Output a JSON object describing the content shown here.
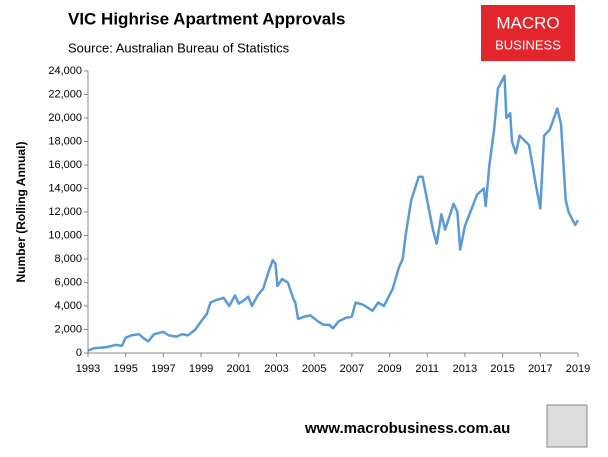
{
  "chart_data": {
    "type": "line",
    "title": "VIC Highrise Apartment Approvals",
    "subtitle": "Source: Australian Bureau of Statistics",
    "y_label": "Number (Rolling Annual)",
    "xlim": [
      1993,
      2019
    ],
    "xticks": [
      1993,
      1995,
      1997,
      1999,
      2001,
      2003,
      2005,
      2007,
      2009,
      2011,
      2013,
      2015,
      2017,
      2019
    ],
    "ylim": [
      0,
      24000
    ],
    "yticks": [
      0,
      {
        "value": 2000,
        "label": "2,000"
      },
      {
        "value": 4000,
        "label": "4,000"
      },
      {
        "value": 6000,
        "label": "6,000"
      },
      {
        "value": 8000,
        "label": "8,000"
      },
      {
        "value": 10000,
        "label": "10,000"
      },
      {
        "value": 12000,
        "label": "12,000"
      },
      {
        "value": 14000,
        "label": "14,000"
      },
      {
        "value": 16000,
        "label": "16,000"
      },
      {
        "value": 18000,
        "label": "18,000"
      },
      {
        "value": 20000,
        "label": "20,000"
      },
      {
        "value": 22000,
        "label": "22,000"
      },
      {
        "value": 24000,
        "label": "24,000"
      }
    ],
    "grid": false,
    "x": [
      1993.0,
      1993.3,
      1994.0,
      1994.5,
      1994.8,
      1995.0,
      1995.3,
      1995.7,
      1996.0,
      1996.2,
      1996.5,
      1997.0,
      1997.3,
      1997.7,
      1998.0,
      1998.3,
      1998.7,
      1999.0,
      1999.3,
      1999.5,
      1999.8,
      2000.2,
      2000.5,
      2000.8,
      2001.0,
      2001.3,
      2001.5,
      2001.7,
      2002.0,
      2002.3,
      2002.6,
      2002.8,
      2002.95,
      2003.05,
      2003.3,
      2003.6,
      2003.9,
      2004.0,
      2004.15,
      2004.5,
      2004.8,
      2005.2,
      2005.5,
      2005.8,
      2006.0,
      2006.3,
      2006.7,
      2007.0,
      2007.2,
      2007.6,
      2008.1,
      2008.4,
      2008.7,
      2009.15,
      2009.5,
      2009.7,
      2009.85,
      2010.15,
      2010.55,
      2010.75,
      2011.0,
      2011.3,
      2011.5,
      2011.75,
      2011.95,
      2012.4,
      2012.6,
      2012.75,
      2013.0,
      2013.65,
      2014.0,
      2014.1,
      2014.3,
      2014.55,
      2014.75,
      2015.1,
      2015.2,
      2015.4,
      2015.5,
      2015.7,
      2015.9,
      2016.4,
      2016.8,
      2017.0,
      2017.2,
      2017.5,
      2017.9,
      2018.1,
      2018.25,
      2018.35,
      2018.5,
      2018.75,
      2018.85,
      2019.0
    ],
    "series": [
      {
        "name": "VIC Highrise Apartment Approvals",
        "color": "#5b9bd5",
        "values": [
          200,
          400,
          500,
          700,
          600,
          1300,
          1500,
          1600,
          1200,
          1000,
          1600,
          1800,
          1500,
          1400,
          1600,
          1500,
          2000,
          2700,
          3300,
          4300,
          4500,
          4700,
          4000,
          4900,
          4200,
          4500,
          4800,
          4000,
          4900,
          5500,
          7000,
          7900,
          7600,
          5700,
          6300,
          6000,
          4600,
          4300,
          2900,
          3100,
          3200,
          2700,
          2400,
          2400,
          2100,
          2700,
          3000,
          3100,
          4300,
          4100,
          3600,
          4300,
          4000,
          5400,
          7300,
          8000,
          10000,
          13000,
          15000,
          15000,
          13000,
          10500,
          9300,
          11800,
          10500,
          12700,
          12000,
          8800,
          10800,
          13500,
          14000,
          12500,
          16000,
          19000,
          22500,
          23600,
          20000,
          20400,
          18000,
          17000,
          18500,
          17700,
          14000,
          12300,
          18500,
          19000,
          20800,
          19500,
          15500,
          13000,
          12000,
          11200,
          10900,
          11300
        ]
      }
    ]
  },
  "logo": [
    "MACRO",
    "BUSINESS"
  ],
  "website": "www.macrobusiness.com.au"
}
